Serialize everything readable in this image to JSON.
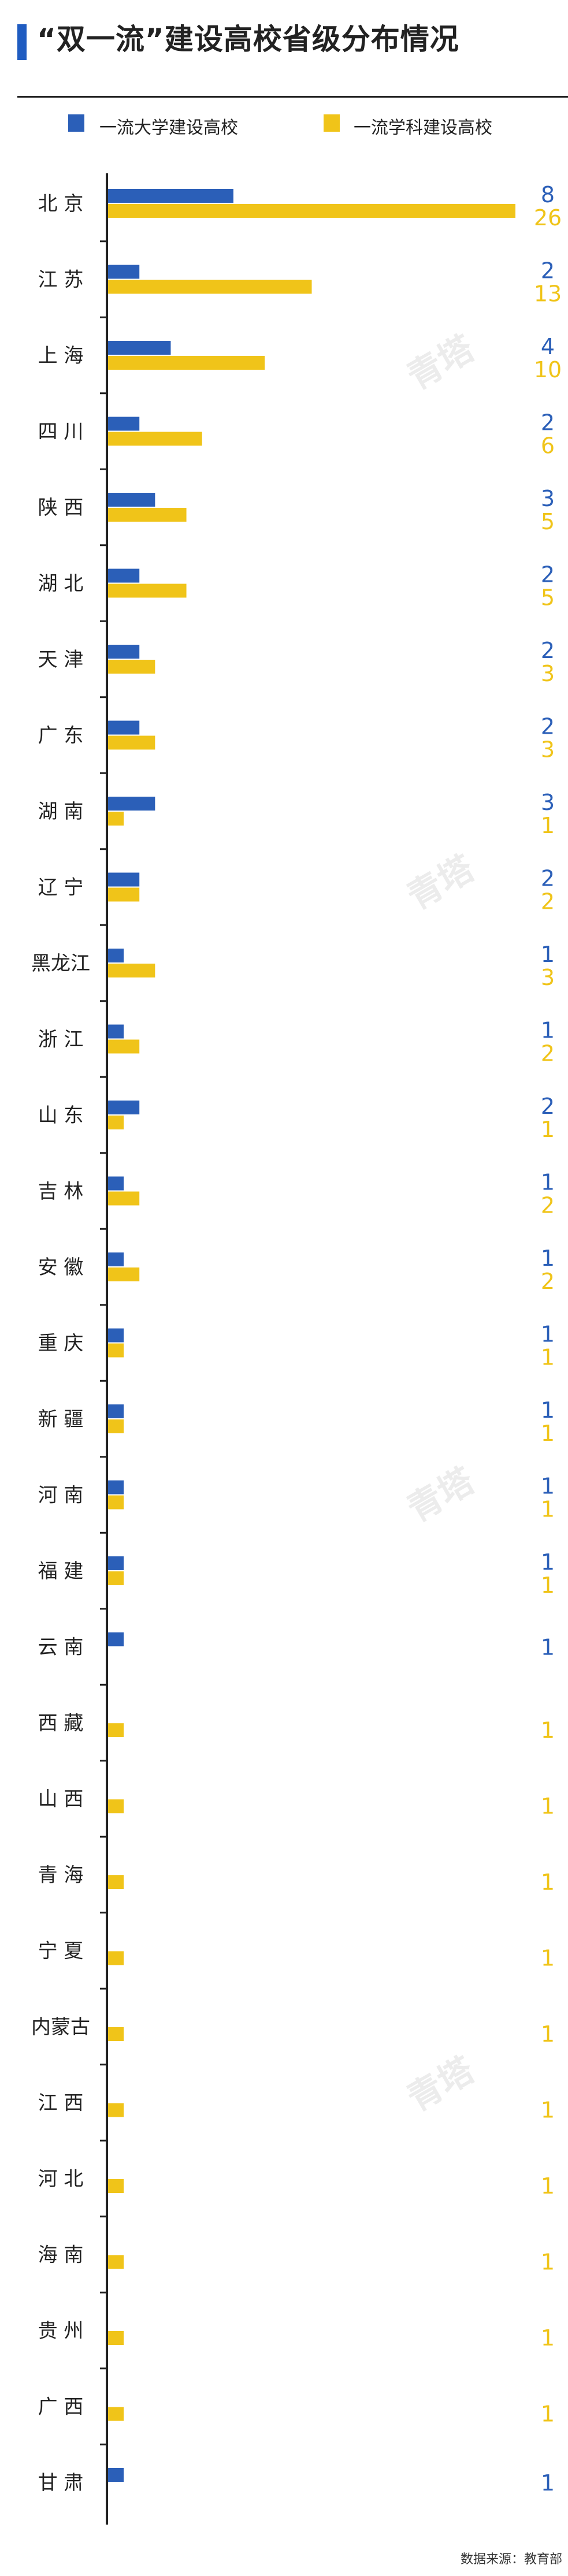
{
  "title": "“双一流”建设高校省级分布情况",
  "source": "数据来源：教育部",
  "watermark": "青塔",
  "colors": {
    "series1": "#2b5fb8",
    "series2": "#f0c419",
    "accent": "#1f5cc1"
  },
  "chart_data": {
    "type": "bar",
    "orientation": "horizontal",
    "legend_position": "top",
    "grid": false,
    "xlim": [
      0,
      26
    ],
    "categories": [
      "北 京",
      "江 苏",
      "上 海",
      "四 川",
      "陕 西",
      "湖 北",
      "天 津",
      "广 东",
      "湖 南",
      "辽 宁",
      "黑龙江",
      "浙 江",
      "山 东",
      "吉 林",
      "安 徽",
      "重 庆",
      "新 疆",
      "河 南",
      "福 建",
      "云 南",
      "西 藏",
      "山 西",
      "青 海",
      "宁 夏",
      "内蒙古",
      "江 西",
      "河 北",
      "海 南",
      "贵 州",
      "广 西",
      "甘 肃"
    ],
    "series": [
      {
        "name": "一流大学建设高校",
        "values": [
          8,
          2,
          4,
          2,
          3,
          2,
          2,
          2,
          3,
          2,
          1,
          1,
          2,
          1,
          1,
          1,
          1,
          1,
          1,
          1,
          null,
          null,
          null,
          null,
          null,
          null,
          null,
          null,
          null,
          null,
          1
        ]
      },
      {
        "name": "一流学科建设高校",
        "values": [
          26,
          13,
          10,
          6,
          5,
          5,
          3,
          3,
          1,
          2,
          3,
          2,
          1,
          2,
          2,
          1,
          1,
          1,
          1,
          null,
          1,
          1,
          1,
          1,
          1,
          1,
          1,
          1,
          1,
          1,
          null
        ]
      }
    ]
  }
}
